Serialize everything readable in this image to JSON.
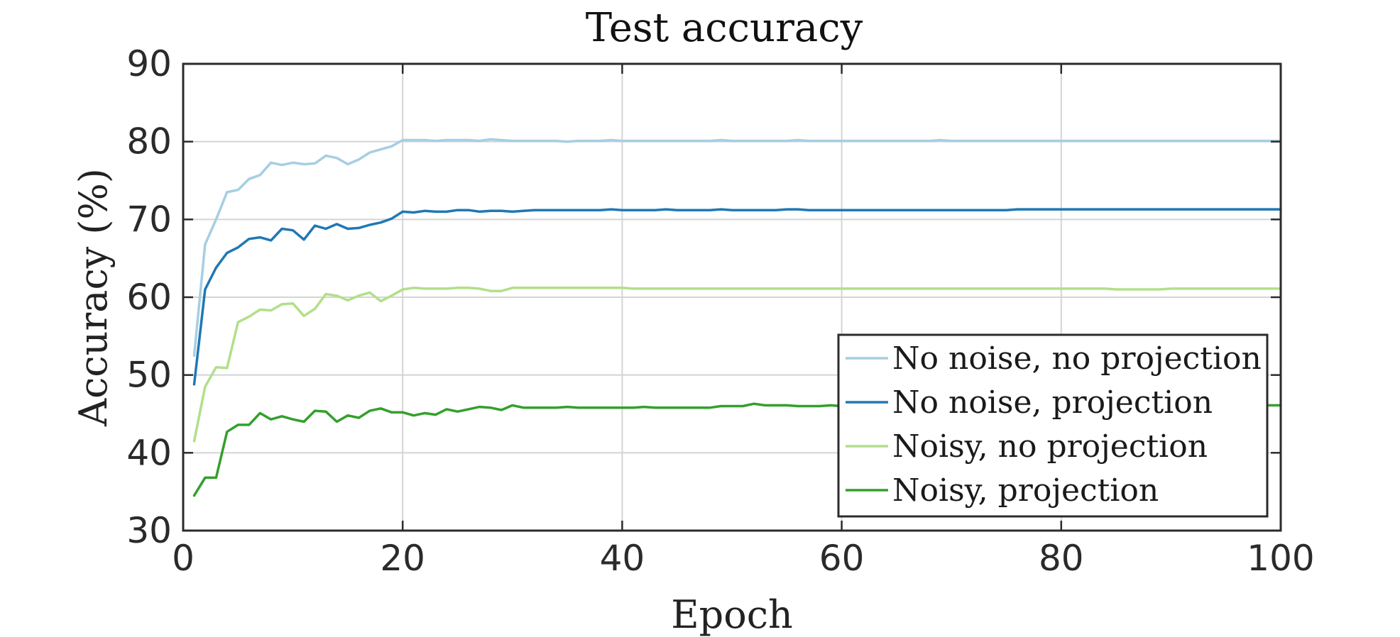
{
  "chart_data": {
    "type": "line",
    "title": "Test accuracy",
    "xlabel": "Epoch",
    "ylabel": "Accuracy (%)",
    "xlim": [
      0,
      100
    ],
    "ylim": [
      30,
      90
    ],
    "xticks": [
      0,
      20,
      40,
      60,
      80,
      100
    ],
    "yticks": [
      30,
      40,
      50,
      60,
      70,
      80,
      90
    ],
    "grid": true,
    "legend_position": "bottom-right",
    "x": [
      1,
      2,
      3,
      4,
      5,
      6,
      7,
      8,
      9,
      10,
      11,
      12,
      13,
      14,
      15,
      16,
      17,
      18,
      19,
      20,
      21,
      22,
      23,
      24,
      25,
      26,
      27,
      28,
      29,
      30,
      31,
      32,
      33,
      34,
      35,
      36,
      37,
      38,
      39,
      40,
      41,
      42,
      43,
      44,
      45,
      46,
      47,
      48,
      49,
      50,
      51,
      52,
      53,
      54,
      55,
      56,
      57,
      58,
      59,
      60,
      61,
      62,
      63,
      64,
      65,
      66,
      67,
      68,
      69,
      70,
      71,
      72,
      73,
      74,
      75,
      76,
      77,
      78,
      79,
      80,
      81,
      82,
      83,
      84,
      85,
      86,
      87,
      88,
      89,
      90,
      91,
      92,
      93,
      94,
      95,
      96,
      97,
      98,
      99,
      100
    ],
    "series": [
      {
        "name": "No noise, no projection",
        "color": "#a6cee3",
        "values": [
          52.5,
          66.8,
          70.0,
          73.5,
          73.8,
          75.2,
          75.7,
          77.3,
          77.0,
          77.3,
          77.1,
          77.2,
          78.2,
          77.9,
          77.1,
          77.7,
          78.6,
          79.0,
          79.4,
          80.2,
          80.2,
          80.2,
          80.1,
          80.2,
          80.2,
          80.2,
          80.1,
          80.3,
          80.2,
          80.1,
          80.1,
          80.1,
          80.1,
          80.1,
          80.0,
          80.1,
          80.1,
          80.1,
          80.2,
          80.1,
          80.1,
          80.1,
          80.1,
          80.1,
          80.1,
          80.1,
          80.1,
          80.1,
          80.2,
          80.1,
          80.1,
          80.1,
          80.1,
          80.1,
          80.1,
          80.2,
          80.1,
          80.1,
          80.1,
          80.1,
          80.1,
          80.1,
          80.1,
          80.1,
          80.1,
          80.1,
          80.1,
          80.1,
          80.2,
          80.1,
          80.1,
          80.1,
          80.1,
          80.1,
          80.1,
          80.1,
          80.1,
          80.1,
          80.1,
          80.1,
          80.1,
          80.1,
          80.1,
          80.1,
          80.1,
          80.1,
          80.1,
          80.1,
          80.1,
          80.1,
          80.1,
          80.1,
          80.1,
          80.1,
          80.1,
          80.1,
          80.1,
          80.1,
          80.1,
          80.1
        ]
      },
      {
        "name": "No noise, projection",
        "color": "#1f78b4",
        "values": [
          48.8,
          61.0,
          63.8,
          65.7,
          66.4,
          67.5,
          67.7,
          67.3,
          68.8,
          68.6,
          67.4,
          69.2,
          68.8,
          69.4,
          68.8,
          68.9,
          69.3,
          69.6,
          70.1,
          71.0,
          70.9,
          71.1,
          71.0,
          71.0,
          71.2,
          71.2,
          71.0,
          71.1,
          71.1,
          71.0,
          71.1,
          71.2,
          71.2,
          71.2,
          71.2,
          71.2,
          71.2,
          71.2,
          71.3,
          71.2,
          71.2,
          71.2,
          71.2,
          71.3,
          71.2,
          71.2,
          71.2,
          71.2,
          71.3,
          71.2,
          71.2,
          71.2,
          71.2,
          71.2,
          71.3,
          71.3,
          71.2,
          71.2,
          71.2,
          71.2,
          71.2,
          71.2,
          71.2,
          71.2,
          71.2,
          71.2,
          71.2,
          71.2,
          71.2,
          71.2,
          71.2,
          71.2,
          71.2,
          71.2,
          71.2,
          71.3,
          71.3,
          71.3,
          71.3,
          71.3,
          71.3,
          71.3,
          71.3,
          71.3,
          71.3,
          71.3,
          71.3,
          71.3,
          71.3,
          71.3,
          71.3,
          71.3,
          71.3,
          71.3,
          71.3,
          71.3,
          71.3,
          71.3,
          71.3,
          71.3
        ]
      },
      {
        "name": "Noisy, no projection",
        "color": "#b2df8a",
        "values": [
          41.5,
          48.5,
          51.0,
          50.9,
          56.8,
          57.5,
          58.4,
          58.3,
          59.1,
          59.2,
          57.6,
          58.5,
          60.4,
          60.2,
          59.6,
          60.2,
          60.6,
          59.5,
          60.2,
          61.0,
          61.2,
          61.1,
          61.1,
          61.1,
          61.2,
          61.2,
          61.1,
          60.8,
          60.8,
          61.2,
          61.2,
          61.2,
          61.2,
          61.2,
          61.2,
          61.2,
          61.2,
          61.2,
          61.2,
          61.2,
          61.1,
          61.1,
          61.1,
          61.1,
          61.1,
          61.1,
          61.1,
          61.1,
          61.1,
          61.1,
          61.1,
          61.1,
          61.1,
          61.1,
          61.1,
          61.1,
          61.1,
          61.1,
          61.1,
          61.1,
          61.1,
          61.1,
          61.1,
          61.1,
          61.1,
          61.1,
          61.1,
          61.1,
          61.1,
          61.1,
          61.1,
          61.1,
          61.1,
          61.1,
          61.1,
          61.1,
          61.1,
          61.1,
          61.1,
          61.1,
          61.1,
          61.1,
          61.1,
          61.1,
          61.0,
          61.0,
          61.0,
          61.0,
          61.0,
          61.1,
          61.1,
          61.1,
          61.1,
          61.1,
          61.1,
          61.1,
          61.1,
          61.1,
          61.1,
          61.1
        ]
      },
      {
        "name": "Noisy, projection",
        "color": "#33a02c",
        "values": [
          34.5,
          36.8,
          36.8,
          42.7,
          43.6,
          43.6,
          45.1,
          44.3,
          44.7,
          44.3,
          44.0,
          45.4,
          45.3,
          44.0,
          44.8,
          44.5,
          45.4,
          45.7,
          45.2,
          45.2,
          44.8,
          45.1,
          44.9,
          45.6,
          45.3,
          45.6,
          45.9,
          45.8,
          45.5,
          46.1,
          45.8,
          45.8,
          45.8,
          45.8,
          45.9,
          45.8,
          45.8,
          45.8,
          45.8,
          45.8,
          45.8,
          45.9,
          45.8,
          45.8,
          45.8,
          45.8,
          45.8,
          45.8,
          46.0,
          46.0,
          46.0,
          46.3,
          46.1,
          46.1,
          46.1,
          46.0,
          46.0,
          46.0,
          46.1,
          46.0,
          46.1,
          46.1,
          46.1,
          46.1,
          46.1,
          46.1,
          46.1,
          46.1,
          46.1,
          46.1,
          46.1,
          46.1,
          46.1,
          46.1,
          46.1,
          46.1,
          46.1,
          46.1,
          46.1,
          46.1,
          46.1,
          46.1,
          46.1,
          46.1,
          46.1,
          46.1,
          46.1,
          46.1,
          46.1,
          46.1,
          46.1,
          46.1,
          46.1,
          46.1,
          46.1,
          46.1,
          46.1,
          46.1,
          46.1,
          46.1
        ]
      }
    ]
  }
}
